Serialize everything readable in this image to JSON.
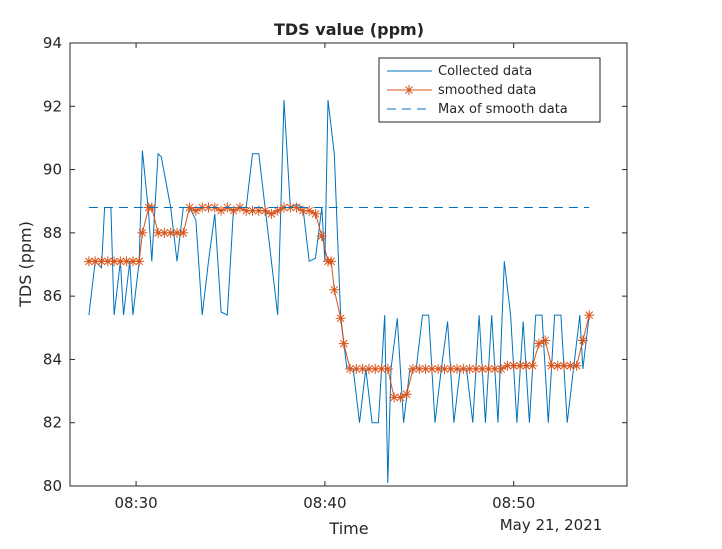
{
  "chart_data": {
    "type": "line",
    "title": "TDS value (ppm)",
    "xlabel": "Time",
    "ylabel": "TDS (ppm)",
    "date_label": "May 21, 2021",
    "ylim": [
      80,
      94
    ],
    "xlim": [
      "08:26:30",
      "08:56:00"
    ],
    "x_ticks": [
      "08:30",
      "08:40",
      "08:50"
    ],
    "y_ticks": [
      80,
      82,
      84,
      86,
      88,
      90,
      92,
      94
    ],
    "grid": false,
    "legend_position": "top-right",
    "series": [
      {
        "name": "Collected data",
        "style": "solid",
        "color": "#0072BD",
        "points": [
          [
            "08:27:30",
            85.4
          ],
          [
            "08:27:50",
            87.1
          ],
          [
            "08:28:10",
            86.9
          ],
          [
            "08:28:20",
            88.8
          ],
          [
            "08:28:40",
            88.8
          ],
          [
            "08:28:50",
            85.4
          ],
          [
            "08:29:10",
            87.1
          ],
          [
            "08:29:20",
            85.4
          ],
          [
            "08:29:40",
            87.1
          ],
          [
            "08:29:50",
            85.4
          ],
          [
            "08:30:10",
            87.1
          ],
          [
            "08:30:20",
            90.6
          ],
          [
            "08:30:40",
            88.6
          ],
          [
            "08:30:50",
            87.1
          ],
          [
            "08:31:10",
            90.5
          ],
          [
            "08:31:20",
            90.4
          ],
          [
            "08:31:50",
            88.8
          ],
          [
            "08:32:10",
            87.1
          ],
          [
            "08:32:30",
            88.8
          ],
          [
            "08:32:50",
            88.8
          ],
          [
            "08:33:10",
            88.4
          ],
          [
            "08:33:30",
            85.4
          ],
          [
            "08:33:50",
            87.1
          ],
          [
            "08:34:10",
            88.6
          ],
          [
            "08:34:30",
            85.5
          ],
          [
            "08:34:50",
            85.4
          ],
          [
            "08:35:10",
            88.8
          ],
          [
            "08:35:30",
            88.8
          ],
          [
            "08:35:50",
            88.8
          ],
          [
            "08:36:10",
            90.5
          ],
          [
            "08:36:30",
            90.5
          ],
          [
            "08:36:50",
            88.8
          ],
          [
            "08:37:10",
            87.1
          ],
          [
            "08:37:30",
            85.4
          ],
          [
            "08:37:50",
            92.2
          ],
          [
            "08:38:10",
            88.8
          ],
          [
            "08:38:30",
            88.9
          ],
          [
            "08:38:50",
            88.8
          ],
          [
            "08:39:10",
            87.1
          ],
          [
            "08:39:30",
            87.2
          ],
          [
            "08:39:50",
            88.8
          ],
          [
            "08:40:00",
            87.1
          ],
          [
            "08:40:10",
            92.2
          ],
          [
            "08:40:30",
            90.5
          ],
          [
            "08:40:50",
            85.4
          ],
          [
            "08:41:10",
            83.7
          ],
          [
            "08:41:30",
            83.7
          ],
          [
            "08:41:50",
            82.0
          ],
          [
            "08:42:10",
            83.7
          ],
          [
            "08:42:30",
            82.0
          ],
          [
            "08:42:50",
            82.0
          ],
          [
            "08:43:10",
            85.4
          ],
          [
            "08:43:20",
            80.1
          ],
          [
            "08:43:30",
            83.7
          ],
          [
            "08:43:50",
            85.3
          ],
          [
            "08:44:10",
            82.0
          ],
          [
            "08:44:30",
            83.7
          ],
          [
            "08:44:50",
            83.7
          ],
          [
            "08:45:10",
            85.4
          ],
          [
            "08:45:30",
            85.4
          ],
          [
            "08:45:50",
            82.0
          ],
          [
            "08:46:10",
            83.7
          ],
          [
            "08:46:30",
            85.2
          ],
          [
            "08:46:50",
            82.0
          ],
          [
            "08:47:10",
            83.7
          ],
          [
            "08:47:30",
            83.7
          ],
          [
            "08:47:50",
            82.0
          ],
          [
            "08:48:10",
            85.4
          ],
          [
            "08:48:30",
            82.0
          ],
          [
            "08:48:50",
            85.4
          ],
          [
            "08:49:10",
            82.0
          ],
          [
            "08:49:30",
            87.1
          ],
          [
            "08:49:50",
            85.4
          ],
          [
            "08:50:10",
            82.0
          ],
          [
            "08:50:30",
            85.2
          ],
          [
            "08:50:50",
            82.0
          ],
          [
            "08:51:10",
            85.4
          ],
          [
            "08:51:30",
            85.4
          ],
          [
            "08:51:50",
            82.0
          ],
          [
            "08:52:10",
            85.4
          ],
          [
            "08:52:30",
            85.4
          ],
          [
            "08:52:50",
            82.0
          ],
          [
            "08:53:10",
            83.7
          ],
          [
            "08:53:30",
            85.4
          ],
          [
            "08:53:40",
            83.7
          ],
          [
            "08:54:00",
            85.4
          ]
        ]
      },
      {
        "name": "smoothed data",
        "style": "solid-asterisk",
        "color": "#D95319",
        "points": [
          [
            "08:27:30",
            87.1
          ],
          [
            "08:27:50",
            87.1
          ],
          [
            "08:28:10",
            87.1
          ],
          [
            "08:28:30",
            87.1
          ],
          [
            "08:28:50",
            87.1
          ],
          [
            "08:29:10",
            87.1
          ],
          [
            "08:29:30",
            87.1
          ],
          [
            "08:29:50",
            87.1
          ],
          [
            "08:30:10",
            87.1
          ],
          [
            "08:30:20",
            88.0
          ],
          [
            "08:30:40",
            88.8
          ],
          [
            "08:30:50",
            88.8
          ],
          [
            "08:31:10",
            88.0
          ],
          [
            "08:31:30",
            88.0
          ],
          [
            "08:31:50",
            88.0
          ],
          [
            "08:32:10",
            88.0
          ],
          [
            "08:32:30",
            88.0
          ],
          [
            "08:32:50",
            88.8
          ],
          [
            "08:33:10",
            88.7
          ],
          [
            "08:33:30",
            88.8
          ],
          [
            "08:33:50",
            88.8
          ],
          [
            "08:34:10",
            88.8
          ],
          [
            "08:34:30",
            88.7
          ],
          [
            "08:34:50",
            88.8
          ],
          [
            "08:35:10",
            88.7
          ],
          [
            "08:35:30",
            88.8
          ],
          [
            "08:35:50",
            88.7
          ],
          [
            "08:36:10",
            88.7
          ],
          [
            "08:36:30",
            88.7
          ],
          [
            "08:36:50",
            88.7
          ],
          [
            "08:37:10",
            88.6
          ],
          [
            "08:37:30",
            88.7
          ],
          [
            "08:37:50",
            88.8
          ],
          [
            "08:38:10",
            88.8
          ],
          [
            "08:38:30",
            88.8
          ],
          [
            "08:38:50",
            88.7
          ],
          [
            "08:39:10",
            88.7
          ],
          [
            "08:39:30",
            88.6
          ],
          [
            "08:39:50",
            87.9
          ],
          [
            "08:40:10",
            87.1
          ],
          [
            "08:40:20",
            87.1
          ],
          [
            "08:40:30",
            86.2
          ],
          [
            "08:40:50",
            85.3
          ],
          [
            "08:41:00",
            84.5
          ],
          [
            "08:41:20",
            83.7
          ],
          [
            "08:41:40",
            83.7
          ],
          [
            "08:42:00",
            83.7
          ],
          [
            "08:42:20",
            83.7
          ],
          [
            "08:42:40",
            83.7
          ],
          [
            "08:43:00",
            83.7
          ],
          [
            "08:43:20",
            83.7
          ],
          [
            "08:43:40",
            82.8
          ],
          [
            "08:44:00",
            82.8
          ],
          [
            "08:44:20",
            82.9
          ],
          [
            "08:44:40",
            83.7
          ],
          [
            "08:45:00",
            83.7
          ],
          [
            "08:45:20",
            83.7
          ],
          [
            "08:45:40",
            83.7
          ],
          [
            "08:46:00",
            83.7
          ],
          [
            "08:46:20",
            83.7
          ],
          [
            "08:46:40",
            83.7
          ],
          [
            "08:47:00",
            83.7
          ],
          [
            "08:47:20",
            83.7
          ],
          [
            "08:47:40",
            83.7
          ],
          [
            "08:48:00",
            83.7
          ],
          [
            "08:48:20",
            83.7
          ],
          [
            "08:48:40",
            83.7
          ],
          [
            "08:49:00",
            83.7
          ],
          [
            "08:49:20",
            83.7
          ],
          [
            "08:49:40",
            83.8
          ],
          [
            "08:50:00",
            83.8
          ],
          [
            "08:50:20",
            83.8
          ],
          [
            "08:50:40",
            83.8
          ],
          [
            "08:51:00",
            83.8
          ],
          [
            "08:51:20",
            84.5
          ],
          [
            "08:51:40",
            84.6
          ],
          [
            "08:52:00",
            83.8
          ],
          [
            "08:52:20",
            83.8
          ],
          [
            "08:52:40",
            83.8
          ],
          [
            "08:53:00",
            83.8
          ],
          [
            "08:53:20",
            83.8
          ],
          [
            "08:53:40",
            84.6
          ],
          [
            "08:54:00",
            85.4
          ]
        ]
      },
      {
        "name": "Max of smooth data",
        "style": "dashed",
        "color": "#0072BD",
        "points": [
          [
            "08:27:30",
            88.8
          ],
          [
            "08:54:00",
            88.8
          ]
        ]
      }
    ]
  }
}
